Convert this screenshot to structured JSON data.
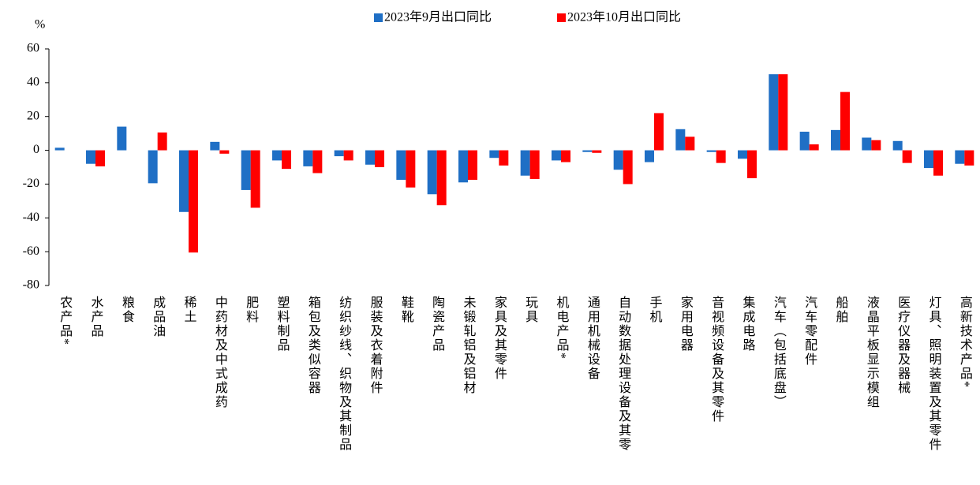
{
  "chart_data": {
    "type": "bar",
    "y_label": "%",
    "categories": [
      "农产品*",
      "水产品",
      "粮食",
      "成品油",
      "稀土",
      "中药材及中式成药",
      "肥料",
      "塑料制品",
      "箱包及类似容器",
      "纺织纱线、织物及其制品",
      "服装及衣着附件",
      "鞋靴",
      "陶瓷产品",
      "未锻轧铝及铝材",
      "家具及其零件",
      "玩具",
      "机电产品*",
      "通用机械设备",
      "自动数据处理设备及其零",
      "手机",
      "家用电器",
      "音视频设备及其零件",
      "集成电路",
      "汽车（包括底盘）",
      "汽车零配件",
      "船舶",
      "液晶平板显示模组",
      "医疗仪器及器械",
      "灯具、照明装置及其零件",
      "高新技术产品*"
    ],
    "series": [
      {
        "name": "2023年9月出口同比",
        "color": "#1f6fc5",
        "values": [
          1.5,
          -8,
          14,
          -19.5,
          -36.5,
          5,
          -23.5,
          -6,
          -9.5,
          -3.5,
          -8.5,
          -17.5,
          -26,
          -19,
          -4.5,
          -15,
          -6,
          -1,
          -11.5,
          -7,
          12.5,
          -1,
          -5,
          45,
          11,
          12,
          7.5,
          5.5,
          -10.5,
          -8
        ]
      },
      {
        "name": "2023年10月出口同比",
        "color": "#ff0000",
        "values": [
          0,
          -9.5,
          0,
          10.5,
          -60.5,
          -2,
          -34,
          -11,
          -13.5,
          -6,
          -10,
          -22,
          -32.5,
          -17.5,
          -9,
          -17,
          -7,
          -1.5,
          -20,
          22,
          8,
          -7.5,
          -16.5,
          45,
          3.5,
          34.5,
          6,
          -7.5,
          -15,
          -9
        ]
      }
    ],
    "ylim": [
      -80,
      60
    ],
    "yticks": [
      -80,
      -60,
      -40,
      -20,
      0,
      20,
      40,
      60
    ],
    "legend": "top"
  }
}
